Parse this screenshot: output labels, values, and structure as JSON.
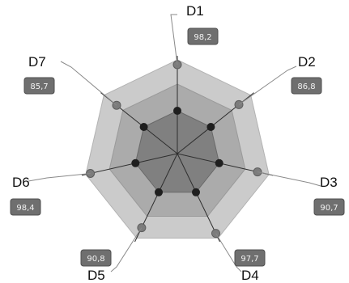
{
  "chart_data": {
    "type": "radar",
    "title": "",
    "categories": [
      "D1",
      "D2",
      "D3",
      "D4",
      "D5",
      "D6",
      "D7"
    ],
    "value_labels": [
      "98,2",
      "86,8",
      "90,7",
      "97,7",
      "90,8",
      "98,4",
      "85,7"
    ],
    "series": [
      {
        "values": [
          98.2,
          86.8,
          90.7,
          97.7,
          90.8,
          98.4,
          85.7
        ],
        "color": "#777777"
      }
    ],
    "reference_levels": [
      {
        "level": "outer",
        "fill": "#c9c9c9"
      },
      {
        "level": "middle",
        "fill": "#a9a9a9"
      },
      {
        "level": "inner",
        "fill": "#7f7f7f"
      }
    ],
    "colors": {
      "outer_band": "#cbcbcb",
      "middle_band": "#ababab",
      "inner_band": "#808080",
      "value_point": "#7c7c7c",
      "inner_point": "#1f1f1f",
      "label_box": "#6f6f6f",
      "label_text": "#f4f4f4",
      "leader_line": "#8a8a8a"
    },
    "grid": true,
    "legend": "none"
  }
}
